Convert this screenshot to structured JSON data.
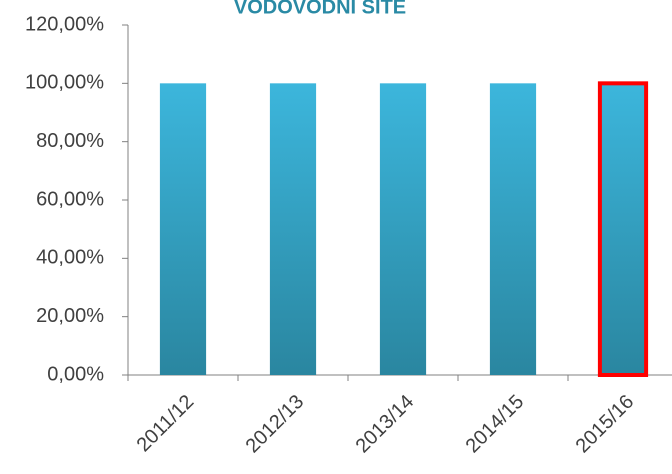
{
  "chart_data": {
    "type": "bar",
    "title": "VODOVODNÍ SÍTĚ",
    "categories": [
      "2011/12",
      "2012/13",
      "2013/14",
      "2014/15",
      "2015/16"
    ],
    "values": [
      100,
      100,
      100,
      100,
      100
    ],
    "color": "#32a6c9",
    "highlight_index": 4,
    "highlight_color": "#ff0000",
    "ylim": [
      0,
      120
    ],
    "yticks": [
      {
        "value": 0,
        "label": "0,00%"
      },
      {
        "value": 20,
        "label": "20,00%"
      },
      {
        "value": 40,
        "label": "40,00%"
      },
      {
        "value": 60,
        "label": "60,00%"
      },
      {
        "value": 80,
        "label": "80,00%"
      },
      {
        "value": 100,
        "label": "100,00%"
      },
      {
        "value": 120,
        "label": "120,00%"
      }
    ],
    "grid": false
  }
}
